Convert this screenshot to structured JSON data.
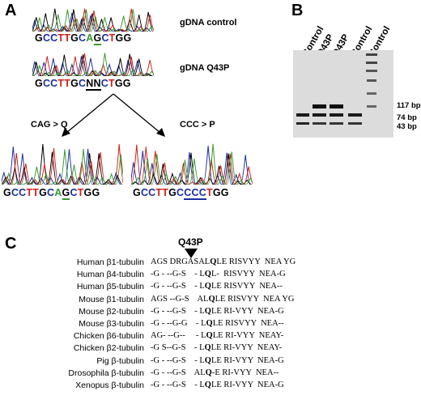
{
  "panels": {
    "a": "A",
    "b": "B",
    "c": "C"
  },
  "panel_a": {
    "control_label": "gDNA control",
    "q43p_label": "gDNA Q43P",
    "seq_control": [
      "G",
      "C",
      "C",
      "T",
      "T",
      "G",
      "C",
      "A",
      "G",
      "C",
      "T",
      "G",
      "G"
    ],
    "seq_q43p": [
      "G",
      "C",
      "C",
      "T",
      "T",
      "G",
      "C",
      "N",
      "N",
      "C",
      "T",
      "G",
      "G"
    ],
    "seq_cag": [
      "G",
      "C",
      "C",
      "T",
      "T",
      "G",
      "C",
      "A",
      "G",
      "C",
      "T",
      "G",
      "G"
    ],
    "seq_ccc": [
      "G",
      "C",
      "C",
      "T",
      "T",
      "G",
      "C",
      "C",
      "C",
      "C",
      "T",
      "G",
      "G"
    ],
    "cag_label": "CAG > Q",
    "ccc_label": "CCC > P",
    "base_colors": {
      "G": "#000000",
      "C": "#1a2fa0",
      "T": "#d0201a",
      "A": "#3a9a30",
      "N": "#000000"
    },
    "trace_colors": [
      "#1a2fa0",
      "#000000",
      "#d0201a",
      "#3a9a30"
    ]
  },
  "panel_b": {
    "lanes": [
      "Control",
      "Q43P",
      "Q43P",
      "Control",
      "Control"
    ],
    "sizes": [
      "117 bp",
      "74 bp",
      "43 bp"
    ]
  },
  "panel_c": {
    "mutation_label": "Q43P",
    "rows": [
      {
        "species": "Human β1-tubulin",
        "seq": [
          "AGS DRGASAL",
          "Q",
          "LE RISVYY  NEA YG"
        ]
      },
      {
        "species": "Human β4-tubulin",
        "seq": [
          "-G - --G-S    - L",
          "Q",
          "L-  RISVYY  NEA-G"
        ]
      },
      {
        "species": "Human β5-tubulin",
        "seq": [
          "-G - --G-S    - L",
          "Q",
          "LE RISVYY  NEA--"
        ]
      },
      {
        "species": "Mouse β1-tubulin",
        "seq": [
          "AGS --G-S    AL",
          "Q",
          "LE RISVYY  NEA YG"
        ]
      },
      {
        "species": "Mouse β2-tubulin",
        "seq": [
          "-G - --G-S    - L",
          "Q",
          "LE RI-VYY  NEA-G"
        ]
      },
      {
        "species": "Mouse β3-tubulin",
        "seq": [
          "-G - --G-G    - L",
          "Q",
          "LE RISVYY  NEA--"
        ]
      },
      {
        "species": "Chicken β6-tubulin",
        "seq": [
          "AG- --G--     - L",
          "Q",
          "LE RI-VYY  NEAY-"
        ]
      },
      {
        "species": "Chicken β2-tubulin",
        "seq": [
          "-G S--G-S    - L",
          "Q",
          "LE RI-VYY  NEAY-"
        ]
      },
      {
        "species": "Pig β-tubulin",
        "seq": [
          "-G - --G-S    - L",
          "Q",
          "LE RI-VYY  NEA-G"
        ]
      },
      {
        "species": "Drosophila β-tubulin",
        "seq": [
          "-G - --G-S    AL",
          "Q",
          "-E RI-VYY  NEA--"
        ]
      },
      {
        "species": "Xenopus β-tubulin",
        "seq": [
          "-G - --G-S    - L",
          "Q",
          "LE RI-VYY  NEA-G"
        ]
      }
    ]
  }
}
